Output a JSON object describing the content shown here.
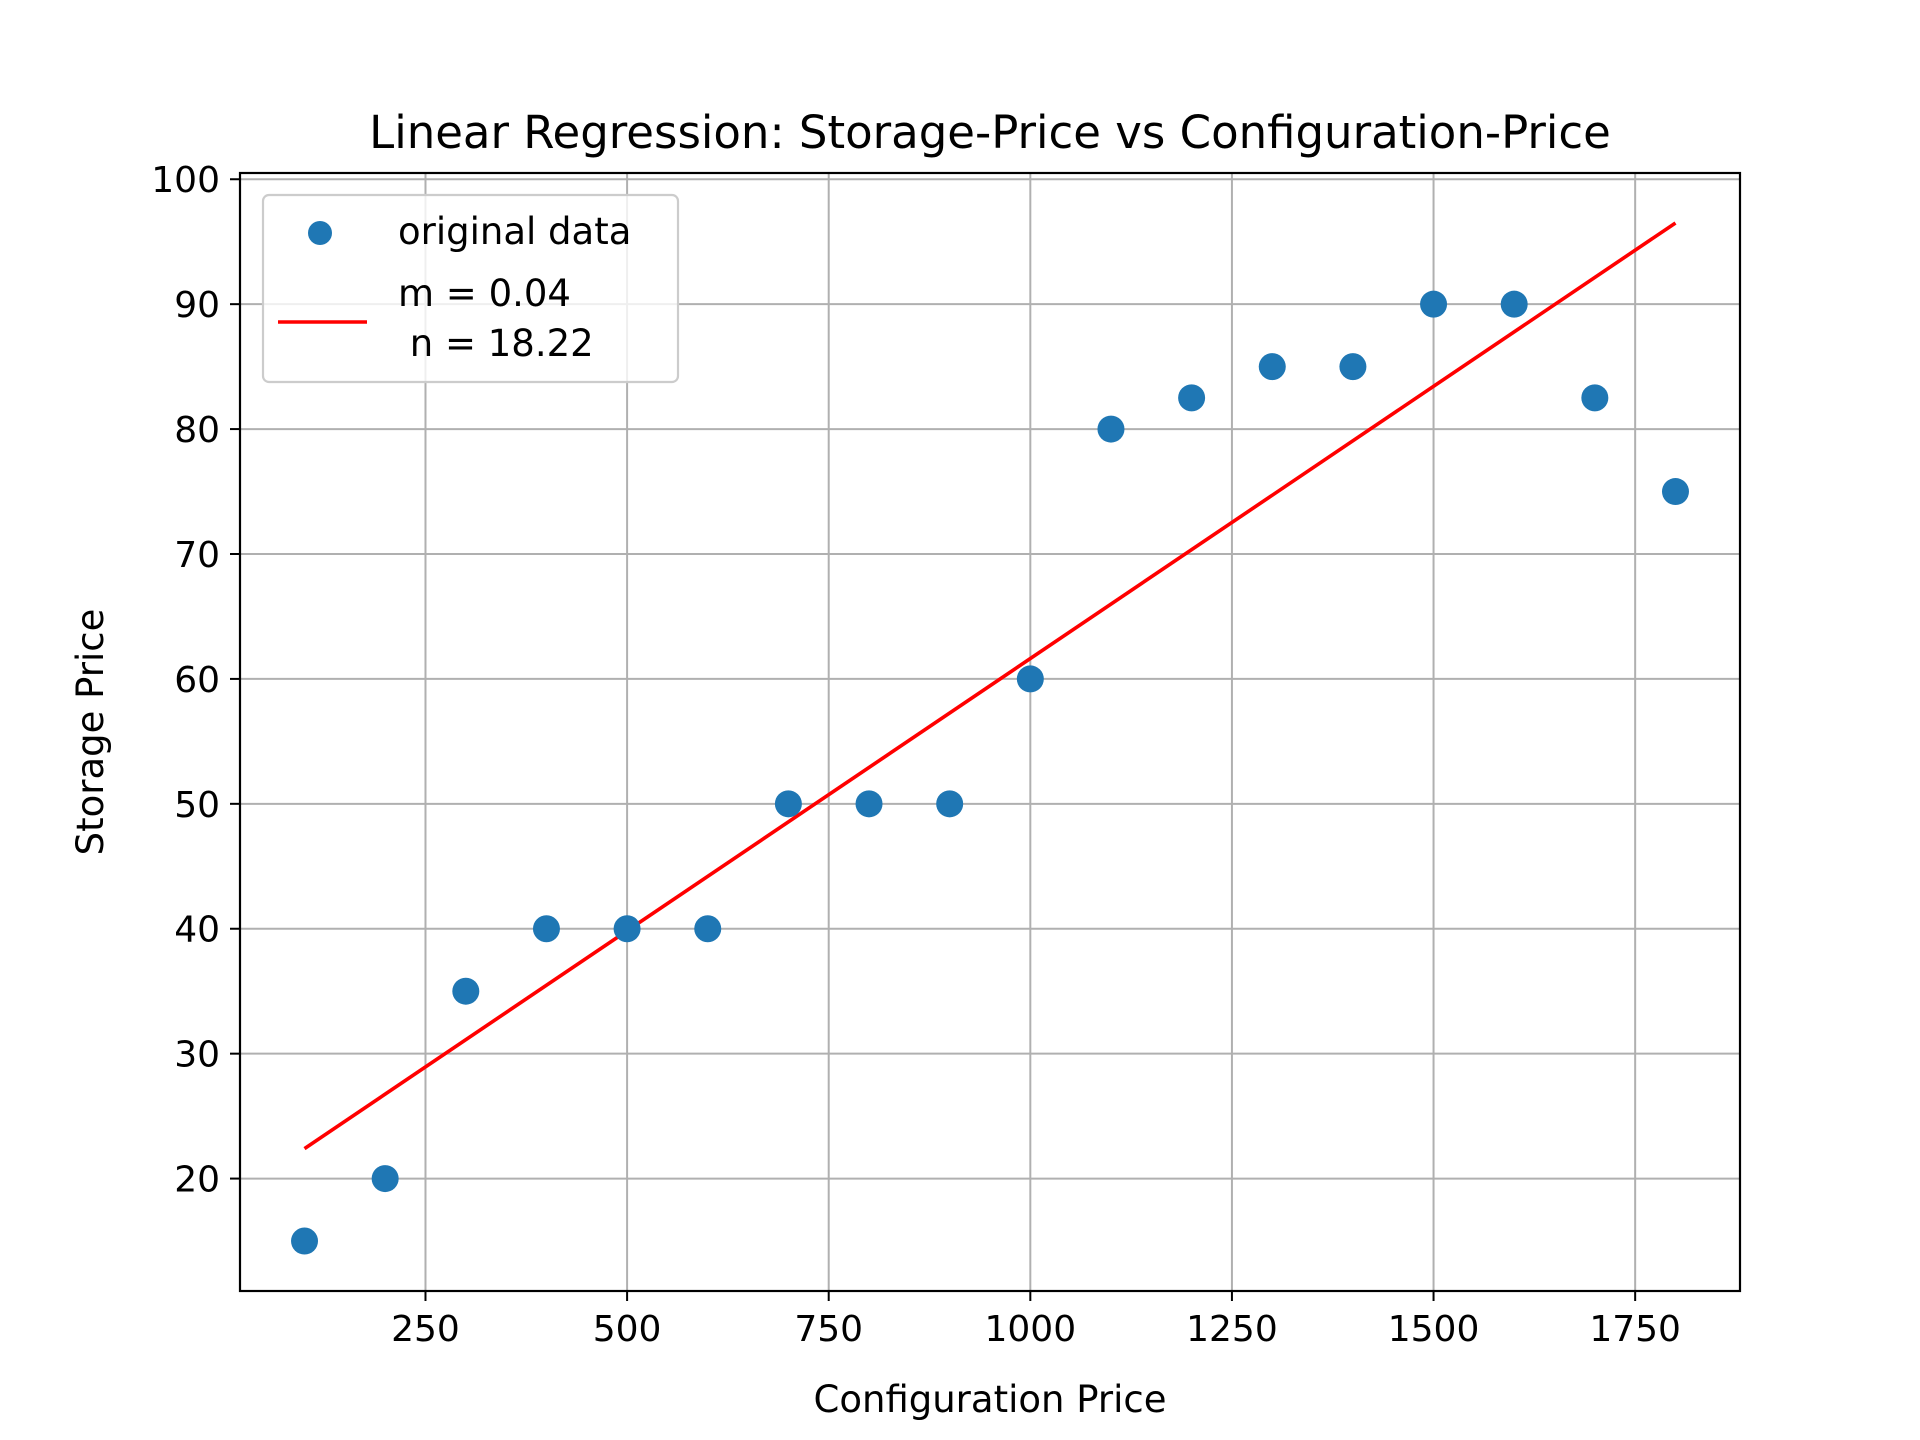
{
  "chart_data": {
    "type": "scatter",
    "title": "Linear Regression: Storage-Price vs Configuration-Price",
    "xlabel": "Configuration Price",
    "ylabel": "Storage Price",
    "xlim": [
      20,
      1880
    ],
    "ylim": [
      11,
      100.5
    ],
    "xticks": [
      250,
      500,
      750,
      1000,
      1250,
      1500,
      1750
    ],
    "yticks": [
      20,
      30,
      40,
      50,
      60,
      70,
      80,
      90,
      100
    ],
    "grid": true,
    "legend_position": "top-left",
    "series": [
      {
        "name": "original data",
        "kind": "scatter",
        "color": "#1f77b4",
        "x": [
          100,
          200,
          300,
          400,
          500,
          600,
          700,
          800,
          900,
          1000,
          1100,
          1200,
          1300,
          1400,
          1500,
          1600,
          1700,
          1800
        ],
        "y": [
          15,
          20,
          35,
          40,
          40,
          40,
          50,
          50,
          50,
          60,
          80,
          82.5,
          85,
          85,
          90,
          90,
          82.5,
          75
        ]
      },
      {
        "name": "m = 0.04\n n = 18.22",
        "kind": "line",
        "color": "#ff0000",
        "x": [
          100,
          1800
        ],
        "y": [
          22.4,
          96.5
        ]
      }
    ],
    "legend": {
      "entries": [
        {
          "label": "original data",
          "marker": "dot"
        },
        {
          "label_lines": [
            "m = 0.04",
            " n = 18.22"
          ],
          "marker": "line"
        }
      ]
    }
  }
}
